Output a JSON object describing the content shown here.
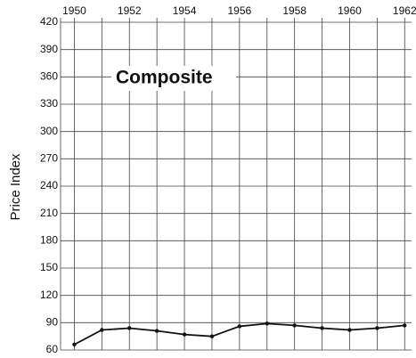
{
  "chart_data": {
    "type": "line",
    "title": "Composite",
    "y_label": "Price Index",
    "x": [
      1950,
      1951,
      1952,
      1953,
      1954,
      1955,
      1956,
      1957,
      1958,
      1959,
      1960,
      1961,
      1962
    ],
    "series": [
      {
        "name": "Composite",
        "color": "#111111",
        "values": [
          66,
          82,
          84,
          81,
          77,
          75,
          86,
          89,
          87,
          84,
          82,
          84,
          87
        ]
      }
    ],
    "xlim": [
      1949.5,
      1962.25
    ],
    "xticks": [
      1950,
      1952,
      1954,
      1956,
      1958,
      1960,
      1962
    ],
    "xminorticks": [
      1951,
      1953,
      1955,
      1957,
      1959,
      1961
    ],
    "ylim": [
      60,
      420
    ],
    "yticks": [
      60,
      90,
      120,
      150,
      180,
      210,
      240,
      270,
      300,
      330,
      360,
      390,
      420
    ],
    "grid": true
  }
}
